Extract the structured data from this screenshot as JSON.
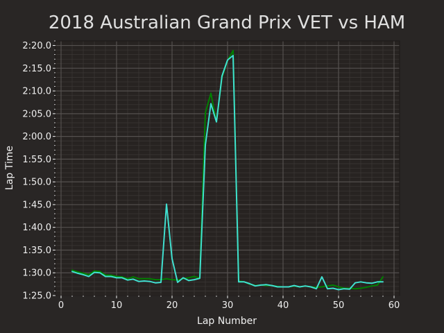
{
  "chart_data": {
    "type": "line",
    "title": "2018 Australian Grand Prix VET vs HAM",
    "xlabel": "Lap Number",
    "ylabel": "Lap Time",
    "xlim": [
      -1,
      61
    ],
    "ylim_seconds": [
      85,
      141
    ],
    "xticks": [
      0,
      10,
      20,
      30,
      40,
      50,
      60
    ],
    "yticks": [
      {
        "label": "1:25.0",
        "seconds": 85
      },
      {
        "label": "1:30.0",
        "seconds": 90
      },
      {
        "label": "1:35.0",
        "seconds": 95
      },
      {
        "label": "1:40.0",
        "seconds": 100
      },
      {
        "label": "1:45.0",
        "seconds": 105
      },
      {
        "label": "1:50.0",
        "seconds": 110
      },
      {
        "label": "1:55.0",
        "seconds": 115
      },
      {
        "label": "2:00.0",
        "seconds": 120
      },
      {
        "label": "2:05.0",
        "seconds": 125
      },
      {
        "label": "2:10.0",
        "seconds": 130
      },
      {
        "label": "2:15.0",
        "seconds": 135
      },
      {
        "label": "2:20.0",
        "seconds": 140
      }
    ],
    "grid": true,
    "legend": "none",
    "series": [
      {
        "color": "#008000",
        "x": [
          2,
          3,
          4,
          5,
          6,
          7,
          8,
          9,
          10,
          11,
          12,
          13,
          14,
          15,
          16,
          17,
          18,
          19,
          20,
          21,
          22,
          23,
          24,
          25,
          26,
          27,
          28,
          29,
          30,
          31,
          32,
          33,
          34,
          35,
          36,
          37,
          38,
          39,
          40,
          41,
          42,
          43,
          44,
          45,
          46,
          47,
          48,
          49,
          50,
          51,
          52,
          53,
          54,
          55,
          56,
          57,
          58
        ],
        "y": [
          90.6,
          90.2,
          89.9,
          89.6,
          90.4,
          90.3,
          89.5,
          89.5,
          89.2,
          89.1,
          88.7,
          89.1,
          88.7,
          88.7,
          88.7,
          88.5,
          88.5,
          88.7,
          88.5,
          88.4,
          88.7,
          88.9,
          89.2,
          88.8,
          125.2,
          129.5,
          123.2,
          133.0,
          136.7,
          138.9,
          88.2,
          88.0,
          87.5,
          87.2,
          87.3,
          87.2,
          87.2,
          87.0,
          86.9,
          86.9,
          87.1,
          86.9,
          87.1,
          86.9,
          86.8,
          86.9,
          87.1,
          87.3,
          86.9,
          86.6,
          86.6,
          86.5,
          86.6,
          86.8,
          87.1,
          87.3,
          89.1
        ]
      },
      {
        "color": "#40e0d0",
        "x": [
          2,
          3,
          4,
          5,
          6,
          7,
          8,
          9,
          10,
          11,
          12,
          13,
          14,
          15,
          16,
          17,
          18,
          19,
          20,
          21,
          22,
          23,
          24,
          25,
          26,
          27,
          28,
          29,
          30,
          31,
          32,
          33,
          34,
          35,
          36,
          37,
          38,
          39,
          40,
          41,
          42,
          43,
          44,
          45,
          46,
          47,
          48,
          49,
          50,
          51,
          52,
          53,
          54,
          55,
          56,
          57,
          58
        ],
        "y": [
          90.3,
          89.9,
          89.6,
          89.2,
          90.1,
          90.0,
          89.2,
          89.2,
          88.9,
          88.9,
          88.4,
          88.6,
          88.1,
          88.2,
          88.1,
          87.8,
          87.9,
          105.1,
          93.1,
          87.9,
          88.9,
          88.3,
          88.5,
          88.8,
          118.1,
          127.2,
          123.2,
          133.3,
          136.8,
          137.8,
          88.0,
          88.0,
          87.6,
          87.1,
          87.3,
          87.4,
          87.2,
          86.9,
          86.9,
          86.9,
          87.2,
          86.9,
          87.1,
          86.9,
          86.5,
          89.1,
          86.5,
          86.6,
          86.3,
          86.5,
          86.4,
          87.8,
          88.0,
          87.8,
          87.7,
          88.0,
          88.0
        ]
      }
    ]
  }
}
